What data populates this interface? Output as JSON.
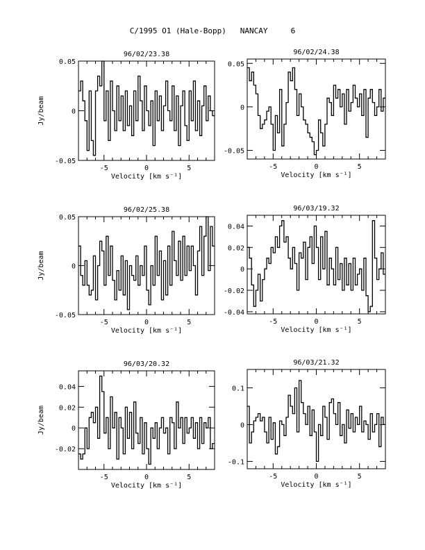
{
  "page_title": "C/1995 O1 (Hale-Bopp)   NANCAY     6",
  "chart_data": [
    {
      "type": "line",
      "title": "96/02/23.38",
      "xlabel": "Velocity [km s⁻¹]",
      "ylabel": "Jy/beam",
      "xlim": [
        -8,
        8
      ],
      "ylim": [
        -0.05,
        0.05
      ],
      "xticks": [
        -5,
        0,
        5
      ],
      "xtick_labels": [
        "-5",
        "0",
        "5"
      ],
      "yticks": [
        -0.05,
        0,
        0.05
      ],
      "ytick_labels": [
        "-0.05",
        "0",
        "0.05"
      ],
      "grid": false,
      "series": [
        {
          "x": [
            -8,
            -7.75,
            -7.5,
            -7.25,
            -7,
            -6.75,
            -6.5,
            -6.25,
            -6,
            -5.75,
            -5.5,
            -5.25,
            -5,
            -4.75,
            -4.5,
            -4.25,
            -4,
            -3.75,
            -3.5,
            -3.25,
            -3,
            -2.75,
            -2.5,
            -2.25,
            -2,
            -1.75,
            -1.5,
            -1.25,
            -1,
            -0.75,
            -0.5,
            -0.25,
            0,
            0.25,
            0.5,
            0.75,
            1,
            1.25,
            1.5,
            1.75,
            2,
            2.25,
            2.5,
            2.75,
            3,
            3.25,
            3.5,
            3.75,
            4,
            4.25,
            4.5,
            4.75,
            5,
            5.25,
            5.5,
            5.75,
            6,
            6.25,
            6.5,
            6.75,
            7,
            7.25,
            7.5,
            7.75
          ],
          "values": [
            0.02,
            0.03,
            0.01,
            -0.01,
            -0.04,
            0.02,
            -0.03,
            -0.045,
            0.02,
            0.035,
            0.025,
            0.05,
            -0.01,
            0.02,
            -0.03,
            0.03,
            0.0,
            -0.02,
            0.025,
            -0.01,
            0.015,
            -0.02,
            0.02,
            -0.015,
            0.005,
            -0.025,
            0.02,
            -0.01,
            0.035,
            0.01,
            -0.02,
            0.025,
            0.0,
            -0.015,
            0.01,
            -0.035,
            0.02,
            -0.01,
            0.015,
            -0.02,
            0.005,
            0.03,
            0.0,
            -0.01,
            0.025,
            -0.02,
            0.015,
            -0.035,
            0.005,
            0.02,
            -0.015,
            -0.03,
            0.02,
            -0.01,
            0.03,
            -0.02,
            0.01,
            -0.025,
            0.005,
            0.025,
            -0.01,
            0.015,
            0.0,
            -0.005
          ]
        }
      ]
    },
    {
      "type": "line",
      "title": "96/02/24.38",
      "xlabel": "Velocity [km s⁻¹]",
      "ylabel": "",
      "xlim": [
        -8,
        8
      ],
      "ylim": [
        -0.06,
        0.055
      ],
      "xticks": [
        -5,
        0,
        5
      ],
      "xtick_labels": [
        "-5",
        "0",
        "5"
      ],
      "yticks": [
        -0.05,
        0,
        0.05
      ],
      "ytick_labels": [
        "-0.05",
        "0",
        "0.05"
      ],
      "grid": false,
      "series": [
        {
          "x": [
            -8,
            -7.75,
            -7.5,
            -7.25,
            -7,
            -6.75,
            -6.5,
            -6.25,
            -6,
            -5.75,
            -5.5,
            -5.25,
            -5,
            -4.75,
            -4.5,
            -4.25,
            -4,
            -3.75,
            -3.5,
            -3.25,
            -3,
            -2.75,
            -2.5,
            -2.25,
            -2,
            -1.75,
            -1.5,
            -1.25,
            -1,
            -0.75,
            -0.5,
            -0.25,
            0,
            0.25,
            0.5,
            0.75,
            1,
            1.25,
            1.5,
            1.75,
            2,
            2.25,
            2.5,
            2.75,
            3,
            3.25,
            3.5,
            3.75,
            4,
            4.25,
            4.5,
            4.75,
            5,
            5.25,
            5.5,
            5.75,
            6,
            6.25,
            6.5,
            6.75,
            7,
            7.25,
            7.5,
            7.75
          ],
          "values": [
            0.045,
            0.03,
            0.04,
            0.025,
            0.015,
            -0.01,
            -0.025,
            -0.02,
            -0.015,
            -0.005,
            0.0,
            -0.02,
            -0.05,
            -0.01,
            -0.03,
            0.02,
            -0.045,
            -0.02,
            0.005,
            0.04,
            0.03,
            0.045,
            0.02,
            -0.01,
            0.015,
            0.0,
            -0.015,
            -0.02,
            -0.03,
            -0.035,
            -0.04,
            -0.055,
            -0.05,
            -0.015,
            -0.03,
            -0.045,
            -0.02,
            0.01,
            0.005,
            -0.01,
            0.025,
            0.01,
            0.02,
            0.0,
            0.015,
            -0.02,
            0.02,
            -0.005,
            0.005,
            0.025,
            0.01,
            0.0,
            0.015,
            -0.01,
            0.02,
            -0.035,
            0.01,
            0.02,
            0.005,
            -0.01,
            0.0,
            0.02,
            -0.005,
            0.01
          ]
        }
      ]
    },
    {
      "type": "line",
      "title": "96/02/25.38",
      "xlabel": "Velocity [km s⁻¹]",
      "ylabel": "Jy/beam",
      "xlim": [
        -8,
        8
      ],
      "ylim": [
        -0.05,
        0.05
      ],
      "xticks": [
        -5,
        0,
        5
      ],
      "xtick_labels": [
        "-5",
        "0",
        "5"
      ],
      "yticks": [
        -0.05,
        0,
        0.05
      ],
      "ytick_labels": [
        "-0.05",
        "0",
        "0.05"
      ],
      "grid": false,
      "series": [
        {
          "x": [
            -8,
            -7.75,
            -7.5,
            -7.25,
            -7,
            -6.75,
            -6.5,
            -6.25,
            -6,
            -5.75,
            -5.5,
            -5.25,
            -5,
            -4.75,
            -4.5,
            -4.25,
            -4,
            -3.75,
            -3.5,
            -3.25,
            -3,
            -2.75,
            -2.5,
            -2.25,
            -2,
            -1.75,
            -1.5,
            -1.25,
            -1,
            -0.75,
            -0.5,
            -0.25,
            0,
            0.25,
            0.5,
            0.75,
            1,
            1.25,
            1.5,
            1.75,
            2,
            2.25,
            2.5,
            2.75,
            3,
            3.25,
            3.5,
            3.75,
            4,
            4.25,
            4.5,
            4.75,
            5,
            5.25,
            5.5,
            5.75,
            6,
            6.25,
            6.5,
            6.75,
            7,
            7.25,
            7.5,
            7.75
          ],
          "values": [
            0.02,
            -0.01,
            -0.02,
            0.005,
            -0.02,
            -0.03,
            -0.025,
            0.01,
            -0.035,
            0.0,
            0.025,
            0.015,
            -0.02,
            0.03,
            -0.01,
            0.02,
            -0.015,
            -0.035,
            -0.005,
            -0.025,
            0.01,
            -0.03,
            0.005,
            -0.045,
            0.0,
            -0.01,
            -0.015,
            0.01,
            -0.02,
            0.0,
            -0.01,
            0.02,
            -0.025,
            -0.04,
            0.0,
            -0.02,
            0.03,
            -0.01,
            0.015,
            -0.035,
            0.005,
            -0.03,
            0.02,
            -0.02,
            0.035,
            0.005,
            -0.01,
            0.025,
            -0.015,
            0.03,
            -0.01,
            0.02,
            -0.005,
            0.02,
            0.0,
            -0.03,
            0.015,
            0.04,
            -0.01,
            0.03,
            0.05,
            -0.005,
            0.04,
            0.02
          ]
        }
      ]
    },
    {
      "type": "line",
      "title": "96/03/19.32",
      "xlabel": "Velocity [km s⁻¹]",
      "ylabel": "",
      "xlim": [
        -8,
        8
      ],
      "ylim": [
        -0.042,
        0.05
      ],
      "xticks": [
        -5,
        0,
        5
      ],
      "xtick_labels": [
        "-5",
        "0",
        "5"
      ],
      "yticks": [
        -0.04,
        -0.02,
        0,
        0.02,
        0.04
      ],
      "ytick_labels": [
        "-0.04",
        "-0.02",
        "0",
        "0.02",
        "0.04"
      ],
      "grid": false,
      "series": [
        {
          "x": [
            -8,
            -7.75,
            -7.5,
            -7.25,
            -7,
            -6.75,
            -6.5,
            -6.25,
            -6,
            -5.75,
            -5.5,
            -5.25,
            -5,
            -4.75,
            -4.5,
            -4.25,
            -4,
            -3.75,
            -3.5,
            -3.25,
            -3,
            -2.75,
            -2.5,
            -2.25,
            -2,
            -1.75,
            -1.5,
            -1.25,
            -1,
            -0.75,
            -0.5,
            -0.25,
            0,
            0.25,
            0.5,
            0.75,
            1,
            1.25,
            1.5,
            1.75,
            2,
            2.25,
            2.5,
            2.75,
            3,
            3.25,
            3.5,
            3.75,
            4,
            4.25,
            4.5,
            4.75,
            5,
            5.25,
            5.5,
            5.75,
            6,
            6.25,
            6.5,
            6.75,
            7,
            7.25,
            7.5,
            7.75
          ],
          "values": [
            0.02,
            0.01,
            -0.015,
            -0.035,
            -0.02,
            -0.005,
            -0.03,
            -0.01,
            0.0,
            0.01,
            0.005,
            0.02,
            0.015,
            0.03,
            0.02,
            0.04,
            0.045,
            0.025,
            0.03,
            0.01,
            0.0,
            0.02,
            0.005,
            -0.02,
            0.015,
            0.01,
            0.025,
            -0.01,
            0.02,
            0.03,
            0.005,
            0.04,
            0.02,
            -0.01,
            0.03,
            0.0,
            0.035,
            -0.015,
            0.01,
            0.0,
            -0.015,
            0.02,
            -0.01,
            0.005,
            -0.02,
            0.01,
            -0.015,
            0.005,
            -0.02,
            0.01,
            -0.015,
            -0.005,
            0.0,
            -0.02,
            0.01,
            -0.025,
            -0.04,
            -0.035,
            0.045,
            0.01,
            -0.01,
            0.0,
            0.015,
            -0.005
          ]
        }
      ]
    },
    {
      "type": "line",
      "title": "96/03/20.32",
      "xlabel": "Velocity [km s⁻¹]",
      "ylabel": "Jy/beam",
      "xlim": [
        -8,
        8
      ],
      "ylim": [
        -0.04,
        0.055
      ],
      "xticks": [
        -5,
        0,
        5
      ],
      "xtick_labels": [
        "-5",
        "0",
        "5"
      ],
      "yticks": [
        -0.02,
        0,
        0.02,
        0.04
      ],
      "ytick_labels": [
        "-0.02",
        "0",
        "0.02",
        "0.04"
      ],
      "grid": false,
      "series": [
        {
          "x": [
            -8,
            -7.75,
            -7.5,
            -7.25,
            -7,
            -6.75,
            -6.5,
            -6.25,
            -6,
            -5.75,
            -5.5,
            -5.25,
            -5,
            -4.75,
            -4.5,
            -4.25,
            -4,
            -3.75,
            -3.5,
            -3.25,
            -3,
            -2.75,
            -2.5,
            -2.25,
            -2,
            -1.75,
            -1.5,
            -1.25,
            -1,
            -0.75,
            -0.5,
            -0.25,
            0,
            0.25,
            0.5,
            0.75,
            1,
            1.25,
            1.5,
            1.75,
            2,
            2.25,
            2.5,
            2.75,
            3,
            3.25,
            3.5,
            3.75,
            4,
            4.25,
            4.5,
            4.75,
            5,
            5.25,
            5.5,
            5.75,
            6,
            6.25,
            6.5,
            6.75,
            7,
            7.25,
            7.5,
            7.75
          ],
          "values": [
            -0.025,
            -0.03,
            -0.025,
            0.0,
            -0.02,
            0.01,
            0.015,
            0.005,
            0.02,
            -0.01,
            0.05,
            0.035,
            -0.005,
            0.01,
            -0.02,
            0.03,
            0.0,
            0.015,
            -0.03,
            0.01,
            0.0,
            -0.025,
            0.02,
            -0.01,
            0.015,
            -0.02,
            0.025,
            -0.005,
            -0.015,
            0.01,
            -0.025,
            0.005,
            -0.02,
            -0.035,
            0.0,
            -0.01,
            0.005,
            -0.02,
            0.0,
            0.01,
            -0.005,
            0.0,
            -0.025,
            0.01,
            0.005,
            -0.02,
            0.025,
            0.0,
            0.01,
            -0.015,
            0.01,
            -0.005,
            0.0,
            0.01,
            -0.01,
            0.005,
            -0.02,
            0.01,
            -0.015,
            0.005,
            0.0,
            0.01,
            -0.02,
            -0.015
          ]
        }
      ]
    },
    {
      "type": "line",
      "title": "96/03/21.32",
      "xlabel": "Velocity [km s⁻¹]",
      "ylabel": "",
      "xlim": [
        -8,
        8
      ],
      "ylim": [
        -0.12,
        0.15
      ],
      "xticks": [
        -5,
        0,
        5
      ],
      "xtick_labels": [
        "-5",
        "0",
        "5"
      ],
      "yticks": [
        -0.1,
        0,
        0.1
      ],
      "ytick_labels": [
        "-0.1",
        "0",
        "0.1"
      ],
      "grid": false,
      "series": [
        {
          "x": [
            -8,
            -7.75,
            -7.5,
            -7.25,
            -7,
            -6.75,
            -6.5,
            -6.25,
            -6,
            -5.75,
            -5.5,
            -5.25,
            -5,
            -4.75,
            -4.5,
            -4.25,
            -4,
            -3.75,
            -3.5,
            -3.25,
            -3,
            -2.75,
            -2.5,
            -2.25,
            -2,
            -1.75,
            -1.5,
            -1.25,
            -1,
            -0.75,
            -0.5,
            -0.25,
            0,
            0.25,
            0.5,
            0.75,
            1,
            1.25,
            1.5,
            1.75,
            2,
            2.25,
            2.5,
            2.75,
            3,
            3.25,
            3.5,
            3.75,
            4,
            4.25,
            4.5,
            4.75,
            5,
            5.25,
            5.5,
            5.75,
            6,
            6.25,
            6.5,
            6.75,
            7,
            7.25,
            7.5,
            7.75
          ],
          "values": [
            0.05,
            -0.05,
            -0.02,
            0.01,
            0.02,
            0.03,
            0.01,
            0.02,
            -0.02,
            -0.05,
            0.02,
            -0.04,
            0.005,
            -0.08,
            -0.06,
            0.01,
            0.0,
            -0.03,
            0.02,
            0.08,
            0.05,
            0.03,
            0.1,
            -0.02,
            0.12,
            0.06,
            0.03,
            0.0,
            0.05,
            -0.03,
            0.04,
            -0.02,
            -0.1,
            0.0,
            -0.03,
            0.05,
            0.02,
            -0.04,
            0.06,
            0.07,
            0.03,
            0.0,
            0.06,
            -0.03,
            0.0,
            -0.05,
            0.04,
            -0.01,
            0.03,
            -0.02,
            0.02,
            0.0,
            0.05,
            -0.02,
            0.01,
            0.0,
            -0.04,
            0.03,
            -0.02,
            0.0,
            0.03,
            -0.06,
            0.02,
            0.0
          ]
        }
      ]
    }
  ]
}
